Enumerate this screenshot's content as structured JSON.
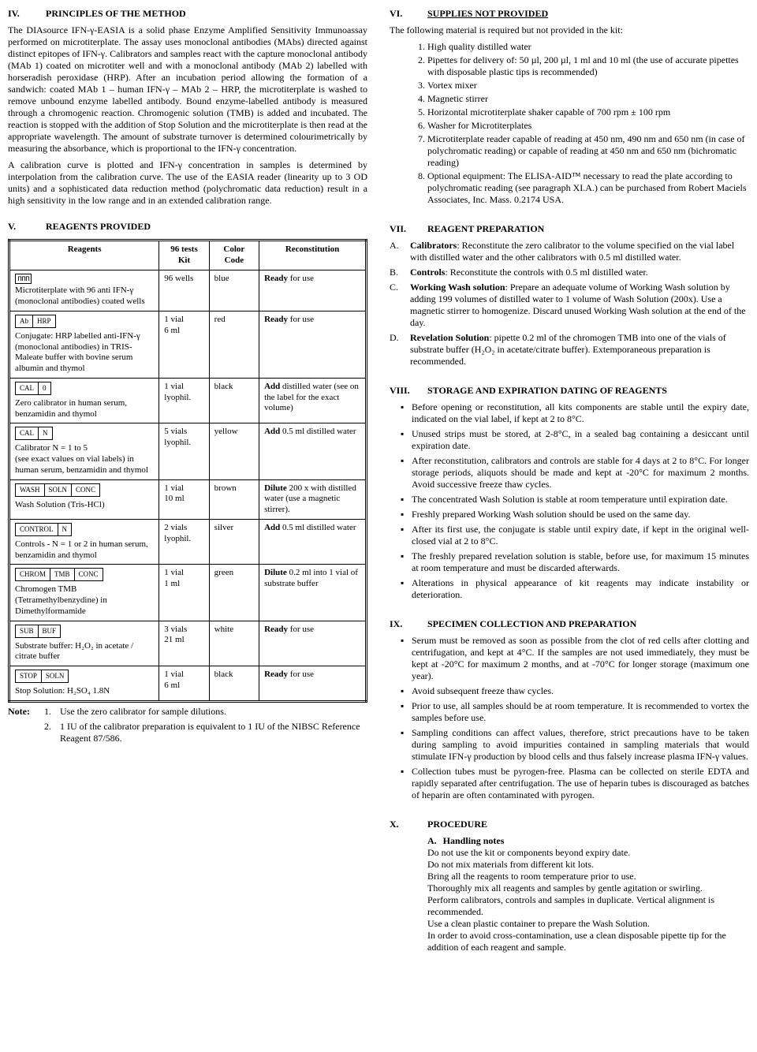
{
  "left": {
    "s4": {
      "num": "IV.",
      "title": "PRINCIPLES OF THE METHOD",
      "p1": "The DIAsource IFN-γ-EASIA is a solid phase Enzyme Amplified Sensitivity Immunoassay performed on microtiterplate.  The assay uses monoclonal antibodies (MAbs) directed against distinct epitopes of IFN-γ.  Calibrators and samples react with the capture monoclonal antibody (MAb 1) coated on microtiter well and with a monoclonal antibody (MAb 2) labelled with horseradish peroxidase (HRP). After an incubation period allowing the formation of a sandwich: coated MAb 1 – human IFN-γ – MAb 2 – HRP, the microtiterplate is washed to remove unbound enzyme labelled antibody.  Bound enzyme-labelled antibody is measured through a chromogenic reaction.  Chromogenic solution (TMB) is added and incubated.  The reaction is stopped with the addition of Stop Solution and the microtiterplate is then read at the appropriate wavelength.    The amount of substrate turnover is determined colourimetrically by measuring the absorbance, which is proportional to the IFN-γ concentration.",
      "p2": "A calibration curve is plotted and IFN-γ concentration in samples is determined by interpolation from the calibration curve.  The use of the EASIA reader (linearity up to 3 OD units) and a sophisticated data reduction method (polychromatic data reduction) result in a high sensitivity in the low range and in an extended calibration range."
    },
    "s5": {
      "num": "V.",
      "title": "REAGENTS PROVIDED",
      "headers": {
        "c1": "Reagents",
        "c2": "96 tests Kit",
        "c3": "Color Code",
        "c4": "Reconstitution"
      },
      "rows": [
        {
          "icon": {
            "type": "plate"
          },
          "desc": "Microtiterplate with 96 anti IFN-γ (monoclonal antibodies) coated wells",
          "kit": "96 wells",
          "color": "blue",
          "recon_b": "Ready",
          "recon_a": " for use"
        },
        {
          "icon": {
            "type": "box",
            "cells": [
              "Ab",
              "HRP"
            ]
          },
          "desc": "Conjugate: HRP labelled anti-IFN-γ (monoclonal antibodies) in TRIS-Maleate buffer with bovine serum albumin and thymol",
          "kit": "1 vial\n6 ml",
          "color": "red",
          "recon_b": "Ready",
          "recon_a": " for use"
        },
        {
          "icon": {
            "type": "box",
            "cells": [
              "CAL",
              "0"
            ]
          },
          "desc": "Zero calibrator in human serum, benzamidin and thymol",
          "kit": "1 vial lyophil.",
          "color": "black",
          "recon_b": "Add",
          "recon_a": " distilled water (see on the label for the exact volume)"
        },
        {
          "icon": {
            "type": "box",
            "cells": [
              "CAL",
              "N"
            ]
          },
          "desc": "Calibrator N = 1 to 5\n(see exact values on vial labels) in human serum, benzamidin and thymol",
          "kit": "5 vials lyophil.",
          "color": "yellow",
          "recon_b": "Add",
          "recon_a": " 0.5 ml distilled water"
        },
        {
          "icon": {
            "type": "box",
            "cells": [
              "WASH",
              "SOLN",
              "CONC"
            ]
          },
          "desc": "Wash Solution (Tris-HCl)",
          "kit": "1 vial\n10 ml",
          "color": "brown",
          "recon_b": "Dilute",
          "recon_a": " 200 x with distilled water (use a magnetic stirrer)."
        },
        {
          "icon": {
            "type": "box",
            "cells": [
              "CONTROL",
              "N"
            ]
          },
          "desc": "Controls - N = 1 or 2 in human serum, benzamidin and thymol",
          "kit": "2 vials lyophil.",
          "color": "silver",
          "recon_b": "Add",
          "recon_a": " 0.5 ml distilled water"
        },
        {
          "icon": {
            "type": "box",
            "cells": [
              "CHROM",
              "TMB",
              "CONC"
            ]
          },
          "desc": "Chromogen TMB (Tetramethylbenzydine) in Dimethylformamide",
          "kit": "1 vial\n1 ml",
          "color": "green",
          "recon_b": "Dilute",
          "recon_a": " 0.2 ml into 1 vial of substrate buffer"
        },
        {
          "icon": {
            "type": "box",
            "cells": [
              "SUB",
              "BUF"
            ]
          },
          "desc": "Substrate buffer: H₂O₂ in acetate / citrate buffer",
          "kit": "3 vials\n21 ml",
          "color": "white",
          "recon_b": "Ready",
          "recon_a": " for use"
        },
        {
          "icon": {
            "type": "box",
            "cells": [
              "STOP",
              "SOLN"
            ]
          },
          "desc": "Stop Solution: H₂SO₄ 1.8N",
          "kit": "1 vial\n6 ml",
          "color": "black",
          "recon_b": "Ready",
          "recon_a": " for use"
        }
      ],
      "note_label": "Note:",
      "notes": [
        "Use the zero calibrator for sample dilutions.",
        "1 IU of the calibrator preparation is equivalent to 1 IU of the NIBSC Reference Reagent 87/586."
      ]
    }
  },
  "right": {
    "s6": {
      "num": "VI.",
      "title": "SUPPLIES NOT PROVIDED",
      "intro": "The following material is required but not provided in the kit:",
      "items": [
        "High quality distilled water",
        "Pipettes for delivery of: 50 µl, 200 µl, 1 ml and 10 ml (the use of accurate pipettes with disposable plastic tips is recommended)",
        "Vortex mixer",
        "Magnetic stirrer",
        "Horizontal microtiterplate shaker capable of 700 rpm ± 100 rpm",
        "Washer for Microtiterplates",
        "Microtiterplate reader capable of reading at 450 nm, 490 nm and 650 nm (in case of polychromatic reading) or capable of reading at 450 nm and 650 nm (bichromatic reading)",
        "Optional equipment: The ELISA-AID™ necessary to read the plate according to polychromatic reading (see paragraph XI.A.) can be purchased from Robert Maciels Associates, Inc. Mass. 0.2174 USA."
      ]
    },
    "s7": {
      "num": "VII.",
      "title": "REAGENT PREPARATION",
      "items": [
        {
          "let": "A.",
          "label": "Calibrators",
          "text": ": Reconstitute the zero calibrator to the volume specified on the vial label with distilled water and the other calibrators with 0.5 ml distilled water."
        },
        {
          "let": "B.",
          "label": "Controls",
          "text": ": Reconstitute the controls with 0.5 ml distilled water."
        },
        {
          "let": "C.",
          "label": "Working Wash solution",
          "text": ": Prepare an adequate volume of Working Wash solution by adding 199 volumes of distilled water to 1 volume of Wash Solution (200x). Use a magnetic stirrer to homogenize. Discard unused Working Wash solution at the end of the day."
        },
        {
          "let": "D.",
          "label": "Revelation Solution",
          "text": ": pipette 0.2 ml of the chromogen TMB into one of the vials of substrate buffer (H₂O₂ in acetate/citrate buffer). Extemporaneous preparation is recommended."
        }
      ]
    },
    "s8": {
      "num": "VIII.",
      "title": "STORAGE AND EXPIRATION DATING OF REAGENTS",
      "items": [
        "Before opening or reconstitution, all kits components are stable until the expiry date, indicated on the vial label, if kept at 2 to 8°C.",
        "Unused strips must be stored, at 2-8°C, in a sealed bag containing a desiccant until expiration date.",
        "After reconstitution, calibrators and controls are stable for 4 days at 2 to 8°C. For longer storage periods, aliquots should be made and kept at -20°C for maximum 2 months. Avoid successive freeze thaw cycles.",
        "The concentrated Wash Solution is stable at room temperature until expiration date.",
        "Freshly prepared Working Wash solution should be used on the same day.",
        "After its first use, the conjugate is stable until expiry date, if kept in the original well-closed vial at 2 to 8°C.",
        "The freshly prepared revelation solution is stable, before use, for maximum 15 minutes at room temperature and must be discarded afterwards.",
        "Alterations in physical appearance of kit reagents may indicate instability or deterioration."
      ]
    },
    "s9": {
      "num": "IX.",
      "title": "SPECIMEN COLLECTION AND PREPARATION",
      "items": [
        "Serum must be removed as soon as possible from the clot of red cells after clotting and centrifugation, and kept at 4°C.  If the samples are not used immediately, they must be kept at -20°C for maximum 2 months, and at -70°C for longer storage (maximum one year).",
        "Avoid subsequent freeze thaw cycles.",
        "Prior to use, all samples should be at room temperature.  It is recommended to vortex the samples before use.",
        "Sampling conditions can affect values, therefore, strict precautions have to be taken during sampling to avoid impurities contained in sampling materials that would stimulate IFN-γ production by blood cells and thus falsely increase plasma IFN-γ values.",
        "Collection tubes must be pyrogen-free. Plasma can be collected on sterile EDTA and rapidly separated after centrifugation.  The use of heparin tubes is discouraged as batches of heparin are often contaminated with pyrogen."
      ]
    },
    "s10": {
      "num": "X.",
      "title": "PROCEDURE",
      "sub_let": "A.",
      "sub_title": "Handling notes",
      "lines": [
        "Do not use the kit or components beyond expiry date.",
        "Do not mix materials from different kit lots.",
        "Bring all the reagents to room temperature prior to use.",
        "Thoroughly mix all reagents and samples by gentle agitation or swirling.",
        "Perform calibrators, controls and samples in duplicate.  Vertical alignment is recommended.",
        "Use a clean plastic container to prepare the Wash Solution.",
        "In order to avoid cross-contamination, use a clean disposable pipette tip for the addition of each reagent and sample."
      ]
    }
  }
}
